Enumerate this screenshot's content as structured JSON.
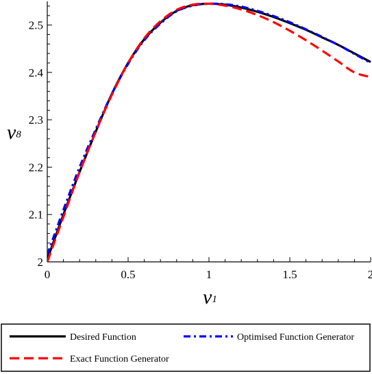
{
  "chart_data": {
    "type": "line",
    "xlabel": {
      "symbol": "v",
      "subscript": "1"
    },
    "ylabel": {
      "symbol": "v",
      "subscript": "8"
    },
    "xlim": [
      0,
      2
    ],
    "ylim": [
      2,
      2.55
    ],
    "xticks": [
      {
        "value": 0,
        "label": "0"
      },
      {
        "value": 0.5,
        "label": "0.5"
      },
      {
        "value": 1,
        "label": "1"
      },
      {
        "value": 1.5,
        "label": "1.5"
      },
      {
        "value": 2,
        "label": "2"
      }
    ],
    "yticks": [
      {
        "value": 2.0,
        "label": "2"
      },
      {
        "value": 2.1,
        "label": "2.1"
      },
      {
        "value": 2.2,
        "label": "2.2"
      },
      {
        "value": 2.3,
        "label": "2.3"
      },
      {
        "value": 2.4,
        "label": "2.4"
      },
      {
        "value": 2.5,
        "label": "2.5"
      }
    ],
    "grid": false,
    "legend_position": "bottom",
    "series": [
      {
        "name": "Desired Function",
        "color": "#000000",
        "dash": "solid",
        "x": [
          0,
          0.1,
          0.2,
          0.3,
          0.4,
          0.5,
          0.6,
          0.7,
          0.8,
          0.9,
          1.0,
          1.1,
          1.2,
          1.3,
          1.4,
          1.5,
          1.6,
          1.7,
          1.8,
          1.9,
          2.0
        ],
        "y": [
          2.005,
          2.1,
          2.19,
          2.275,
          2.355,
          2.42,
          2.47,
          2.505,
          2.53,
          2.542,
          2.545,
          2.543,
          2.537,
          2.528,
          2.517,
          2.504,
          2.49,
          2.474,
          2.458,
          2.44,
          2.422
        ]
      },
      {
        "name": "Optimised Function Generator",
        "color": "#0000ff",
        "dash": "dash-dot",
        "x": [
          0,
          0.1,
          0.2,
          0.3,
          0.4,
          0.5,
          0.6,
          0.7,
          0.8,
          0.9,
          1.0,
          1.1,
          1.2,
          1.3,
          1.4,
          1.5,
          1.6,
          1.7,
          1.8,
          1.9,
          2.0
        ],
        "y": [
          2.015,
          2.11,
          2.2,
          2.28,
          2.355,
          2.418,
          2.468,
          2.503,
          2.529,
          2.541,
          2.545,
          2.544,
          2.539,
          2.53,
          2.519,
          2.506,
          2.491,
          2.475,
          2.458,
          2.439,
          2.42
        ]
      },
      {
        "name": "Exact Function Generator",
        "color": "#ff0000",
        "dash": "dashed",
        "x": [
          0,
          0.1,
          0.2,
          0.3,
          0.4,
          0.5,
          0.6,
          0.7,
          0.8,
          0.9,
          1.0,
          1.1,
          1.2,
          1.3,
          1.4,
          1.5,
          1.6,
          1.7,
          1.8,
          1.9,
          2.0
        ],
        "y": [
          2.0,
          2.095,
          2.19,
          2.275,
          2.353,
          2.42,
          2.472,
          2.508,
          2.532,
          2.543,
          2.545,
          2.541,
          2.533,
          2.521,
          2.506,
          2.488,
          2.468,
          2.446,
          2.423,
          2.4,
          2.39
        ]
      }
    ]
  }
}
